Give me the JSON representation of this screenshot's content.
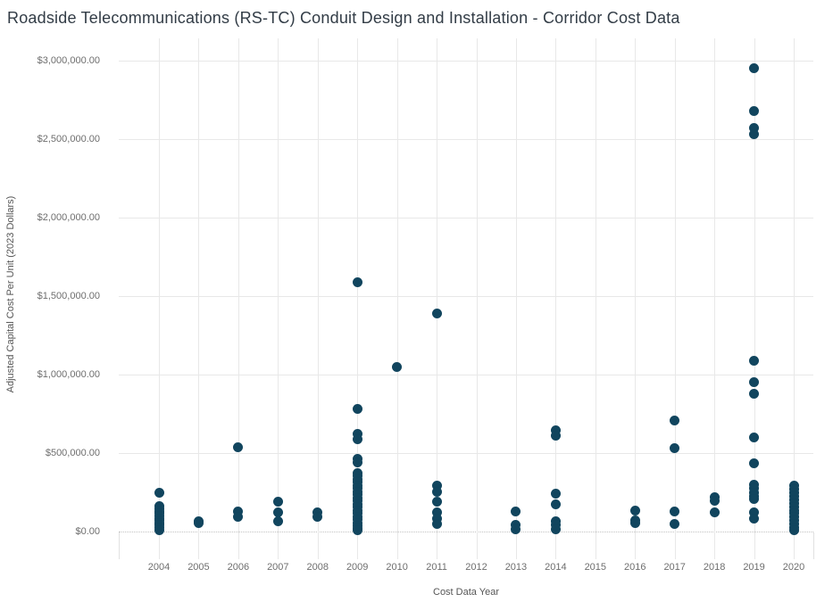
{
  "title": "Roadside Telecommunications (RS-TC) Conduit Design and Installation - Corridor Cost Data",
  "colors": {
    "dot": "#11455e",
    "title_text": "#323c46",
    "axis_title_text": "#555555",
    "tick_text": "#6e6e6e",
    "gridline": "#e8e8e8",
    "zero_line": "#c2c2c2"
  },
  "chart_data": {
    "type": "scatter",
    "title": "Roadside Telecommunications (RS-TC) Conduit Design and Installation - Corridor Cost Data",
    "xlabel": "Cost Data Year",
    "ylabel": "Adjusted Capital Cost Per Unit (2023 Dollars)",
    "grid": true,
    "legend": false,
    "ylim": [
      0,
      3000000
    ],
    "y_tick_values": [
      0,
      500000,
      1000000,
      1500000,
      2000000,
      2500000,
      3000000
    ],
    "y_tick_labels": [
      "$0.00",
      "$500,000.00",
      "$1,000,000.00",
      "$1,500,000.00",
      "$2,000,000.00",
      "$2,500,000.00",
      "$3,000,000.00"
    ],
    "x_categories": [
      2004,
      2005,
      2006,
      2007,
      2008,
      2009,
      2010,
      2011,
      2012,
      2013,
      2014,
      2015,
      2016,
      2017,
      2018,
      2019,
      2020
    ],
    "series": [
      {
        "name": "Adjusted Capital Cost Per Unit",
        "points_by_year": [
          {
            "year": 2004,
            "values": [
              245000,
              160000,
              145000,
              130000,
              115000,
              100000,
              85000,
              70000,
              55000,
              40000,
              25000,
              10000
            ]
          },
          {
            "year": 2005,
            "values": [
              66000,
              56000
            ]
          },
          {
            "year": 2006,
            "values": [
              535000,
              130000,
              95000
            ]
          },
          {
            "year": 2007,
            "values": [
              190000,
              125000,
              65000
            ]
          },
          {
            "year": 2008,
            "values": [
              120000,
              95000
            ]
          },
          {
            "year": 2009,
            "values": [
              1590000,
              780000,
              620000,
              590000,
              465000,
              440000,
              375000,
              355000,
              335000,
              315000,
              295000,
              275000,
              255000,
              235000,
              215000,
              195000,
              175000,
              155000,
              135000,
              115000,
              95000,
              75000,
              55000,
              35000,
              20000,
              8000
            ]
          },
          {
            "year": 2010,
            "values": [
              1050000
            ]
          },
          {
            "year": 2011,
            "values": [
              1390000,
              295000,
              255000,
              190000,
              120000,
              80000,
              48000
            ]
          },
          {
            "year": 2012,
            "values": []
          },
          {
            "year": 2013,
            "values": [
              130000,
              45000,
              15000
            ]
          },
          {
            "year": 2014,
            "values": [
              645000,
              610000,
              240000,
              175000,
              65000,
              40000,
              15000
            ]
          },
          {
            "year": 2015,
            "values": []
          },
          {
            "year": 2016,
            "values": [
              135000,
              70000,
              55000
            ]
          },
          {
            "year": 2017,
            "values": [
              705000,
              530000,
              130000,
              48000
            ]
          },
          {
            "year": 2018,
            "values": [
              220000,
              195000,
              125000
            ]
          },
          {
            "year": 2019,
            "values": [
              2950000,
              2680000,
              2570000,
              2530000,
              1090000,
              950000,
              880000,
              600000,
              435000,
              300000,
              275000,
              250000,
              225000,
              205000,
              120000,
              80000
            ]
          },
          {
            "year": 2020,
            "values": [
              290000,
              268000,
              246000,
              224000,
              202000,
              180000,
              158000,
              136000,
              114000,
              92000,
              70000,
              48000,
              26000,
              10000
            ]
          }
        ]
      }
    ]
  }
}
